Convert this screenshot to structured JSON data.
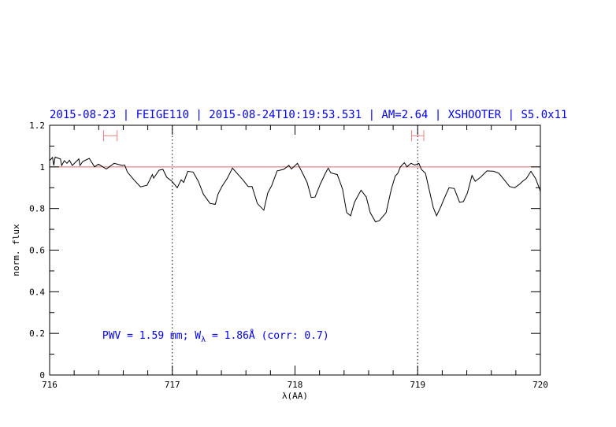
{
  "chart_data": {
    "type": "line",
    "title": "2015-08-23 | FEIGE110 | 2015-08-24T10:19:53.531 | AM=2.64 | XSHOOTER | S5.0x11",
    "xlabel": "λ(AA)",
    "ylabel": "norm. flux",
    "xlim": [
      716,
      720
    ],
    "ylim": [
      0,
      1.2
    ],
    "xticks": [
      "716",
      "717",
      "718",
      "719",
      "720"
    ],
    "yticks": [
      "0",
      "0.2",
      "0.4",
      "0.6",
      "0.8",
      "1",
      "1.2"
    ],
    "reference_line_y": 1,
    "reference_line_color": "#e06666",
    "vertical_dotted_lines_x": [
      717,
      719
    ],
    "ranges_markers": [
      [
        716.44,
        716.55
      ],
      [
        718.95,
        719.05
      ]
    ],
    "range_marker_y": 1.15,
    "range_marker_color": "#f08080",
    "line_color": "#000000",
    "text_color": "#0000ee",
    "annotation": {
      "prefix": "PWV = 1.59 mm; W",
      "subscript": "λ",
      "suffix": " = 1.86Å (corr: 0.7)",
      "x": 716.5,
      "y": 0.19
    },
    "series": [
      {
        "x": [
          716.0,
          716.024,
          716.034,
          716.045,
          716.088,
          716.098,
          716.12,
          716.141,
          716.162,
          716.184,
          716.238,
          716.248,
          716.27,
          716.323,
          716.366,
          716.398,
          716.462,
          716.526,
          716.591,
          716.612,
          716.634,
          716.687,
          716.74,
          716.794,
          716.837,
          716.848,
          716.891,
          716.923,
          716.955,
          716.997,
          717.04,
          717.072,
          717.093,
          717.126,
          717.169,
          717.212,
          717.254,
          717.308,
          717.35,
          717.372,
          717.404,
          717.447,
          717.49,
          717.543,
          717.575,
          717.618,
          717.65,
          717.693,
          717.746,
          717.778,
          717.811,
          717.854,
          717.907,
          717.95,
          717.971,
          718.02,
          718.057,
          718.099,
          718.132,
          718.164,
          718.207,
          718.249,
          718.271,
          718.292,
          718.345,
          718.388,
          718.421,
          718.453,
          718.485,
          718.538,
          718.581,
          718.613,
          718.656,
          718.688,
          718.742,
          718.785,
          718.817,
          718.838,
          718.859,
          718.891,
          718.913,
          718.945,
          718.977,
          719.009,
          719.03,
          719.063,
          719.095,
          719.127,
          719.154,
          719.191,
          719.212,
          719.255,
          719.298,
          719.341,
          719.373,
          719.405,
          719.443,
          719.469,
          719.512,
          719.565,
          719.619,
          719.662,
          719.705,
          719.748,
          719.79,
          719.833,
          719.855,
          719.886,
          719.923,
          719.961,
          719.994,
          720.0
        ],
        "y": [
          1.03,
          1.045,
          1.007,
          1.047,
          1.038,
          1.007,
          1.03,
          1.017,
          1.032,
          1.007,
          1.038,
          1.007,
          1.026,
          1.041,
          1.0,
          1.013,
          0.99,
          1.017,
          1.007,
          1.009,
          0.975,
          0.938,
          0.904,
          0.912,
          0.963,
          0.946,
          0.984,
          0.988,
          0.95,
          0.931,
          0.9,
          0.938,
          0.925,
          0.979,
          0.975,
          0.931,
          0.868,
          0.824,
          0.82,
          0.868,
          0.906,
          0.944,
          0.994,
          0.959,
          0.938,
          0.906,
          0.906,
          0.824,
          0.792,
          0.874,
          0.912,
          0.981,
          0.988,
          1.007,
          0.99,
          1.017,
          0.975,
          0.925,
          0.853,
          0.855,
          0.918,
          0.971,
          0.994,
          0.971,
          0.963,
          0.893,
          0.78,
          0.765,
          0.83,
          0.888,
          0.855,
          0.78,
          0.736,
          0.742,
          0.78,
          0.893,
          0.956,
          0.969,
          1.0,
          1.02,
          1.0,
          1.017,
          1.009,
          1.017,
          0.988,
          0.969,
          0.888,
          0.805,
          0.765,
          0.812,
          0.843,
          0.9,
          0.896,
          0.83,
          0.833,
          0.874,
          0.959,
          0.931,
          0.95,
          0.981,
          0.979,
          0.969,
          0.938,
          0.906,
          0.9,
          0.918,
          0.931,
          0.944,
          0.979,
          0.944,
          0.893,
          0.88
        ]
      }
    ]
  }
}
